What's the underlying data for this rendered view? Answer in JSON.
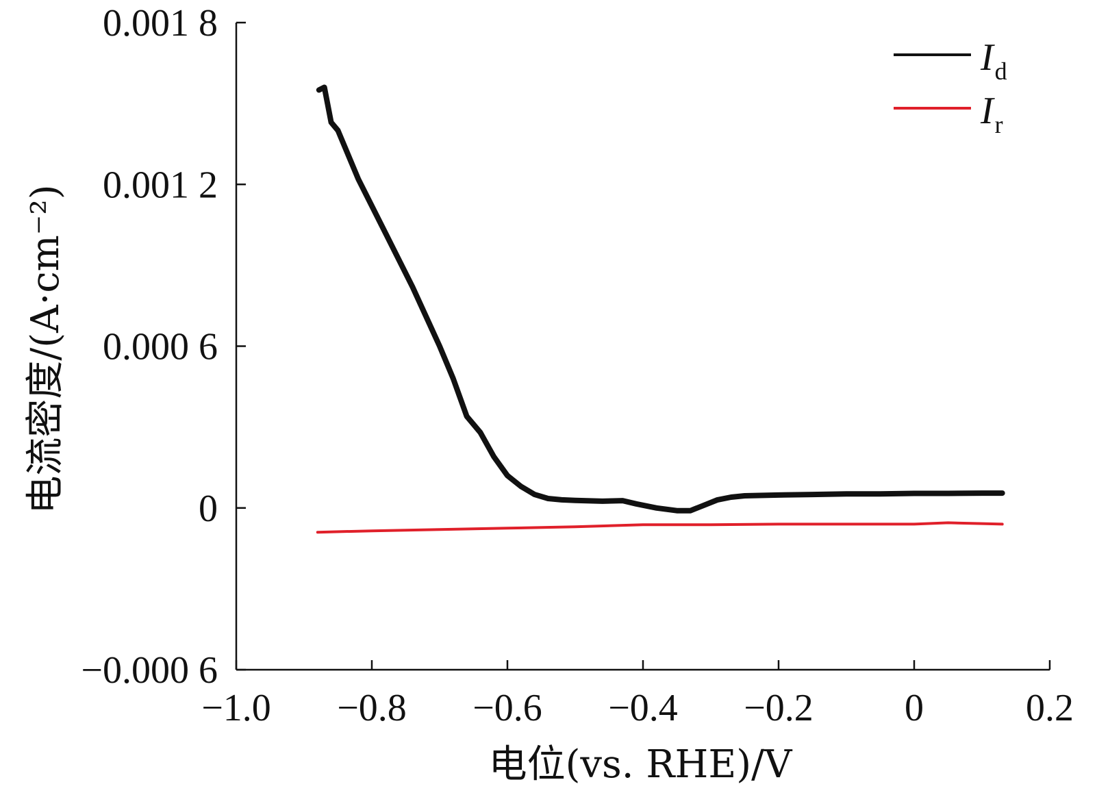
{
  "chart_data": {
    "type": "line",
    "xlabel": "电位(vs. RHE)/V",
    "ylabel": "电流密度/(A·cm⁻²)",
    "xlim": [
      -1.0,
      0.2
    ],
    "ylim": [
      -0.0006,
      0.0018
    ],
    "x_ticks": [
      -1.0,
      -0.8,
      -0.6,
      -0.4,
      -0.2,
      0,
      0.2
    ],
    "x_tick_labels": [
      "−1.0",
      "−0.8",
      "−0.6",
      "−0.4",
      "−0.2",
      "0",
      "0.2"
    ],
    "y_ticks": [
      -0.0006,
      0,
      0.0006,
      0.0012,
      0.0018
    ],
    "y_tick_labels": [
      "−0.000 6",
      "0",
      "0.000 6",
      "0.001 2",
      "0.001 8"
    ],
    "grid": false,
    "legend_position": "top-right",
    "series": [
      {
        "name": "Id",
        "name_main": "I",
        "name_sub": "d",
        "color": "#111111",
        "x": [
          -0.878,
          -0.87,
          -0.86,
          -0.85,
          -0.82,
          -0.78,
          -0.74,
          -0.7,
          -0.68,
          -0.66,
          -0.64,
          -0.62,
          -0.6,
          -0.58,
          -0.56,
          -0.54,
          -0.52,
          -0.5,
          -0.46,
          -0.43,
          -0.41,
          -0.38,
          -0.35,
          -0.33,
          -0.31,
          -0.29,
          -0.27,
          -0.25,
          -0.2,
          -0.15,
          -0.1,
          -0.05,
          0.0,
          0.05,
          0.1,
          0.13
        ],
        "y": [
          0.00155,
          0.00156,
          0.00143,
          0.0014,
          0.00122,
          0.00102,
          0.00082,
          0.0006,
          0.00048,
          0.00034,
          0.00028,
          0.00019,
          0.00012,
          8e-05,
          5e-05,
          3.5e-05,
          3e-05,
          2.8e-05,
          2.5e-05,
          2.7e-05,
          1.5e-05,
          0.0,
          -1e-05,
          -1e-05,
          1e-05,
          3e-05,
          4e-05,
          4.5e-05,
          4.8e-05,
          5e-05,
          5.2e-05,
          5.2e-05,
          5.4e-05,
          5.4e-05,
          5.5e-05,
          5.5e-05
        ]
      },
      {
        "name": "Ir",
        "name_main": "I",
        "name_sub": "r",
        "color": "#e0202a",
        "x": [
          -0.88,
          -0.8,
          -0.7,
          -0.6,
          -0.5,
          -0.4,
          -0.3,
          -0.2,
          -0.1,
          0.0,
          0.05,
          0.1,
          0.13
        ],
        "y": [
          -9e-05,
          -8.5e-05,
          -8e-05,
          -7.5e-05,
          -7e-05,
          -6.2e-05,
          -6.2e-05,
          -6e-05,
          -6e-05,
          -6e-05,
          -5.5e-05,
          -5.8e-05,
          -6e-05
        ]
      }
    ]
  }
}
